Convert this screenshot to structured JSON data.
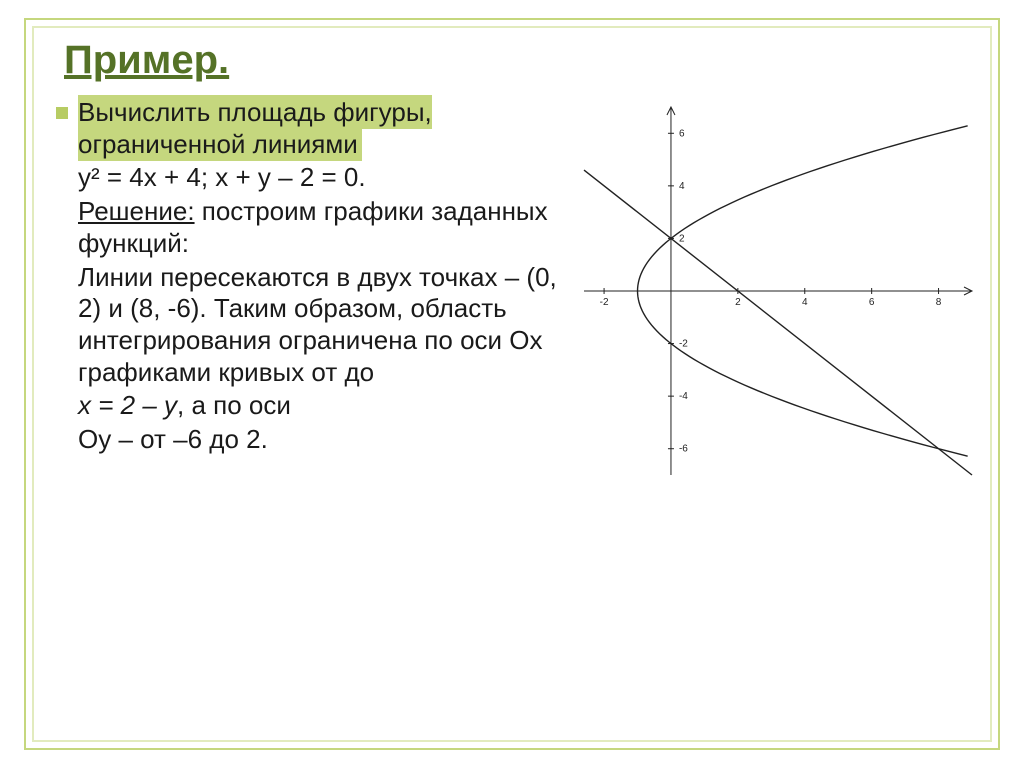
{
  "colors": {
    "frame": "#c5d77e",
    "title": "#557227",
    "bullet": "#b7cc63",
    "highlight_bg": "#c5d77e",
    "text": "#1a1a1a"
  },
  "title": "Пример.",
  "paragraphs": [
    {
      "bullet": true,
      "highlight": true,
      "text": "Вычислить площадь фигуры, ограниченной линиями"
    },
    {
      "bullet": false,
      "highlight": false,
      "text": "y² = 4x + 4; x + y – 2 = 0."
    },
    {
      "bullet": false,
      "highlight": false,
      "html": "<span class='under'>Решение:</span> построим графики заданных функций:"
    },
    {
      "bullet": false,
      "highlight": false,
      "text": "Линии пересекаются в двух точках – (0, 2) и (8, -6). Таким образом, область интегрирования ограничена по оси Ox графиками кривых от  до"
    },
    {
      "bullet": false,
      "highlight": false,
      "html": "<i>x = 2 – y</i>, а по оси"
    },
    {
      "bullet": false,
      "highlight": false,
      "text": "Oy – от –6 до 2."
    }
  ],
  "chart": {
    "type": "line",
    "xlim": [
      -2.6,
      9
    ],
    "ylim": [
      -7,
      7
    ],
    "xtick_step": 2,
    "ytick_step": 2,
    "xticks": [
      -2,
      2,
      4,
      6,
      8
    ],
    "yticks": [
      -6,
      -4,
      -2,
      2,
      4,
      6
    ],
    "axis_color": "#222222",
    "curve_color": "#222222",
    "curve_width": 1.4,
    "tick_fontsize": 10,
    "background": "#ffffff",
    "line_segment": {
      "x1": -2.6,
      "y1": 4.6,
      "x2": 9,
      "y2": -7
    },
    "parabola": {
      "equation": "y^2 = 4x + 4",
      "y_range": [
        -6.5,
        6.5
      ]
    }
  }
}
